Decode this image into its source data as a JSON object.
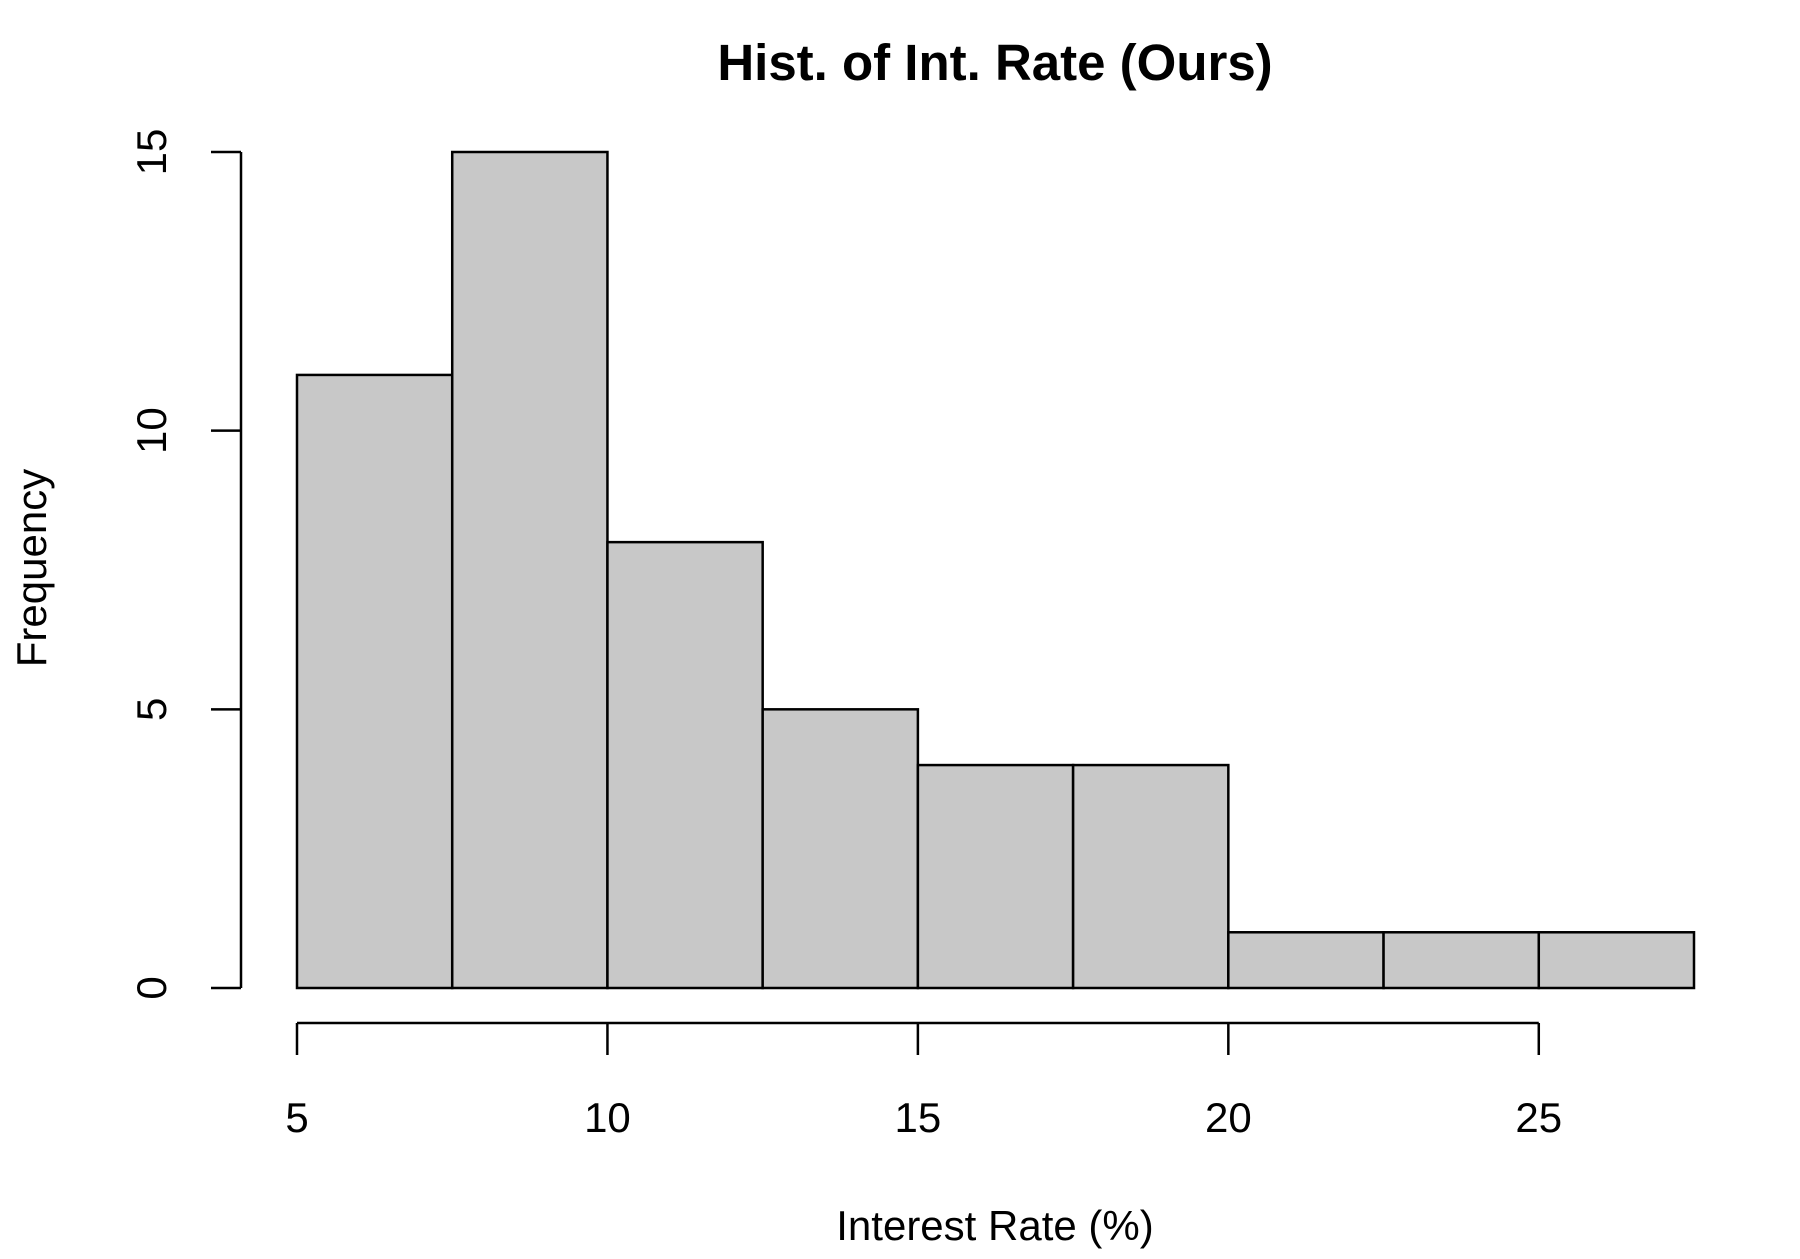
{
  "chart_data": {
    "type": "bar",
    "title": "Hist. of Int. Rate (Ours)",
    "xlabel": "Interest Rate (%)",
    "ylabel": "Frequency",
    "bins": [
      {
        "start": 5,
        "end": 7.5,
        "count": 11
      },
      {
        "start": 7.5,
        "end": 10,
        "count": 15
      },
      {
        "start": 10,
        "end": 12.5,
        "count": 8
      },
      {
        "start": 12.5,
        "end": 15,
        "count": 5
      },
      {
        "start": 15,
        "end": 17.5,
        "count": 4
      },
      {
        "start": 17.5,
        "end": 20,
        "count": 4
      },
      {
        "start": 20,
        "end": 22.5,
        "count": 1
      },
      {
        "start": 22.5,
        "end": 25,
        "count": 1
      },
      {
        "start": 25,
        "end": 27.5,
        "count": 1
      }
    ],
    "xlim": [
      5,
      27.5
    ],
    "ylim": [
      0,
      15
    ],
    "xticks": [
      5,
      10,
      15,
      20,
      25
    ],
    "yticks": [
      0,
      5,
      10,
      15
    ],
    "bar_color": "#c8c8c8",
    "edge_color": "#000000",
    "grid": false,
    "legend": "none"
  }
}
